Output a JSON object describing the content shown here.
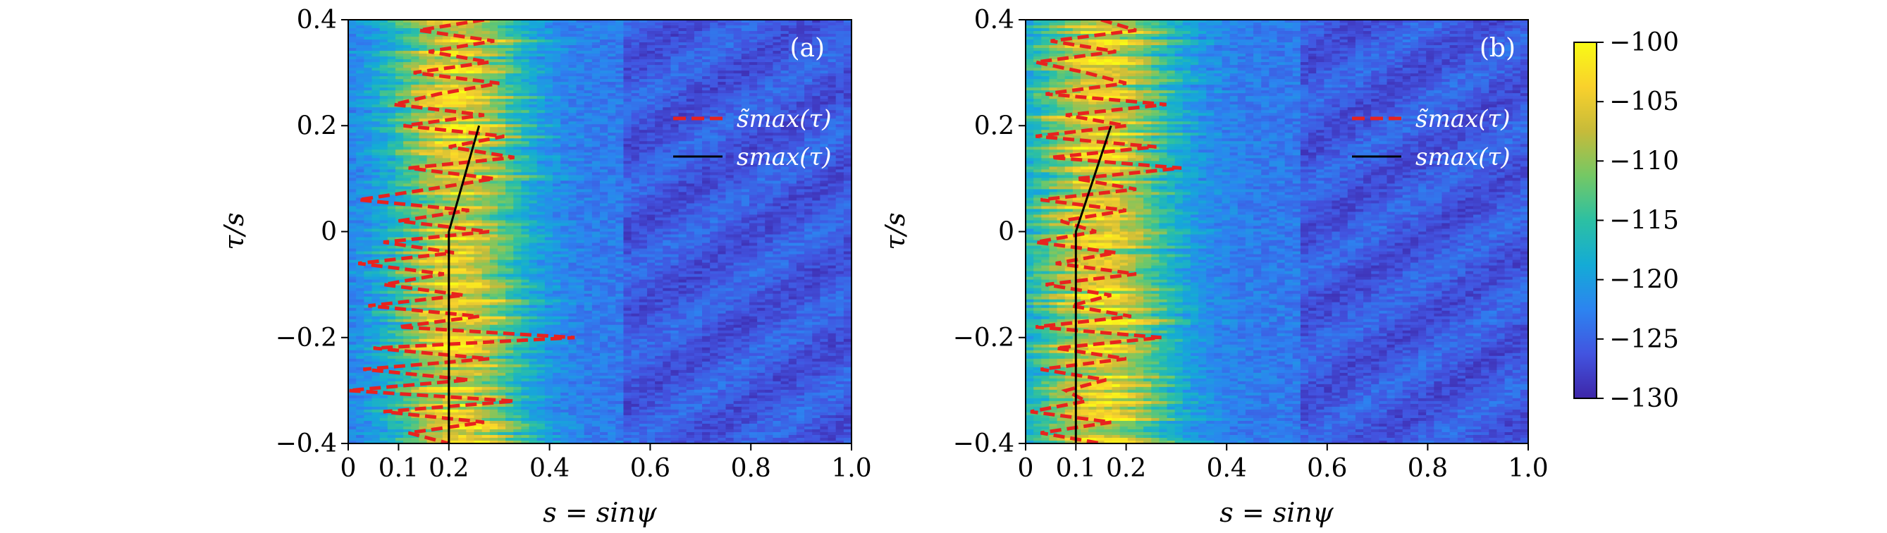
{
  "chart_data": [
    {
      "type": "heatmap",
      "panel_label": "(a)",
      "xlabel": "s = sinψ",
      "ylabel": "τ/s",
      "xlim": [
        0,
        1.0
      ],
      "ylim": [
        -0.4,
        0.4
      ],
      "xticks": [
        0,
        0.1,
        0.2,
        0.4,
        0.6,
        0.8,
        1.0
      ],
      "xtick_labels": [
        "0",
        "0.1",
        "0.2",
        "0.4",
        "0.6",
        "0.8",
        "1.0"
      ],
      "yticks": [
        -0.4,
        -0.2,
        0,
        0.2,
        0.4
      ],
      "ytick_labels": [
        "−0.4",
        "−0.2",
        "0",
        "0.2",
        "0.4"
      ],
      "ridge_center": 0.22,
      "ridge_width": 0.13,
      "legend_position": "upper-right",
      "series": [
        {
          "name": "s̃max(τ)",
          "style": "dashed",
          "color": "#e8221e",
          "tau": [
            0.4,
            0.38,
            0.36,
            0.34,
            0.32,
            0.3,
            0.28,
            0.26,
            0.24,
            0.22,
            0.2,
            0.18,
            0.16,
            0.14,
            0.12,
            0.1,
            0.08,
            0.06,
            0.04,
            0.02,
            0.0,
            -0.02,
            -0.04,
            -0.06,
            -0.08,
            -0.1,
            -0.12,
            -0.14,
            -0.16,
            -0.18,
            -0.2,
            -0.22,
            -0.24,
            -0.26,
            -0.28,
            -0.3,
            -0.32,
            -0.34,
            -0.36,
            -0.38,
            -0.4
          ],
          "s": [
            0.27,
            0.14,
            0.29,
            0.16,
            0.28,
            0.13,
            0.3,
            0.18,
            0.09,
            0.27,
            0.11,
            0.31,
            0.2,
            0.33,
            0.12,
            0.29,
            0.16,
            0.02,
            0.24,
            0.1,
            0.28,
            0.07,
            0.21,
            0.02,
            0.19,
            0.07,
            0.23,
            0.04,
            0.26,
            0.1,
            0.45,
            0.05,
            0.28,
            0.03,
            0.24,
            0.0,
            0.33,
            0.07,
            0.27,
            0.12,
            0.2
          ],
          "extra_segments_note": "dense zig-zag around ridge"
        },
        {
          "name": "smax(τ)",
          "style": "solid",
          "color": "#000000",
          "tau": [
            -0.4,
            0.0,
            0.2
          ],
          "s": [
            0.2,
            0.2,
            0.26
          ]
        }
      ]
    },
    {
      "type": "heatmap",
      "panel_label": "(b)",
      "xlabel": "s = sinψ",
      "ylabel": "τ/s",
      "xlim": [
        0,
        1.0
      ],
      "ylim": [
        -0.4,
        0.4
      ],
      "xticks": [
        0,
        0.1,
        0.2,
        0.4,
        0.6,
        0.8,
        1.0
      ],
      "xtick_labels": [
        "0",
        "0.1",
        "0.2",
        "0.4",
        "0.6",
        "0.8",
        "1.0"
      ],
      "yticks": [
        -0.4,
        -0.2,
        0,
        0.2,
        0.4
      ],
      "ytick_labels": [
        "−0.4",
        "−0.2",
        "0",
        "0.2",
        "0.4"
      ],
      "ridge_center": 0.15,
      "ridge_width": 0.14,
      "legend_position": "upper-right",
      "series": [
        {
          "name": "s̃max(τ)",
          "style": "dashed",
          "color": "#e8221e",
          "tau": [
            0.4,
            0.38,
            0.36,
            0.34,
            0.32,
            0.3,
            0.28,
            0.26,
            0.24,
            0.22,
            0.2,
            0.18,
            0.16,
            0.14,
            0.12,
            0.1,
            0.08,
            0.06,
            0.04,
            0.02,
            0.0,
            -0.02,
            -0.04,
            -0.06,
            -0.08,
            -0.1,
            -0.12,
            -0.14,
            -0.16,
            -0.18,
            -0.2,
            -0.22,
            -0.24,
            -0.26,
            -0.28,
            -0.3,
            -0.32,
            -0.34,
            -0.36,
            -0.38,
            -0.4
          ],
          "s": [
            0.15,
            0.22,
            0.05,
            0.18,
            0.02,
            0.12,
            0.2,
            0.04,
            0.28,
            0.08,
            0.2,
            0.02,
            0.26,
            0.05,
            0.31,
            0.1,
            0.22,
            0.03,
            0.2,
            0.07,
            0.14,
            0.02,
            0.18,
            0.06,
            0.22,
            0.04,
            0.17,
            0.09,
            0.21,
            0.02,
            0.27,
            0.06,
            0.2,
            0.03,
            0.16,
            0.08,
            0.12,
            0.01,
            0.17,
            0.03,
            0.15
          ],
          "extra_segments_note": "dense zig-zag around ridge"
        },
        {
          "name": "smax(τ)",
          "style": "solid",
          "color": "#000000",
          "tau": [
            -0.4,
            0.0,
            0.2
          ],
          "s": [
            0.1,
            0.1,
            0.17
          ]
        }
      ]
    }
  ],
  "colorbar": {
    "min": -130,
    "max": -100,
    "ticks": [
      -100,
      -105,
      -110,
      -115,
      -120,
      -125,
      -130
    ],
    "tick_labels": [
      "−100",
      "−105",
      "−110",
      "−115",
      "−120",
      "−125",
      "−130"
    ],
    "colormap": "viridis-like (blue to yellow)",
    "colors": [
      "#3e26a8",
      "#4254e0",
      "#2c84f0",
      "#14abd6",
      "#2cc0a3",
      "#74c865",
      "#c6bb3a",
      "#f9d12c",
      "#f9fb15"
    ]
  }
}
